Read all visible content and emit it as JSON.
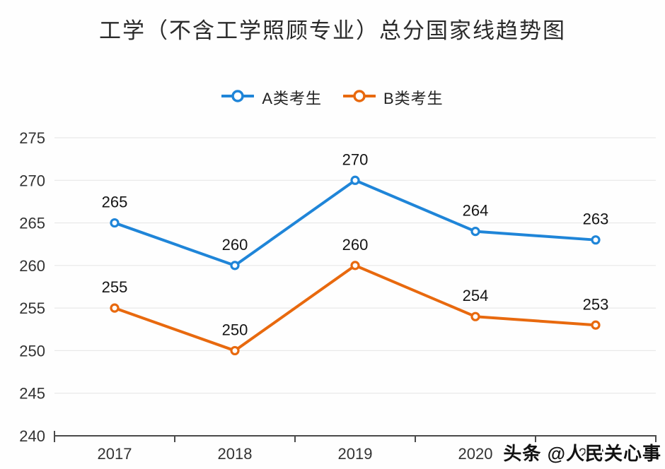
{
  "chart_data": {
    "type": "line",
    "title": "工学（不含工学照顾专业）总分国家线趋势图",
    "categories": [
      "2017",
      "2018",
      "2019",
      "2020",
      "2021"
    ],
    "series": [
      {
        "name": "A类考生",
        "color": "#1f85d8",
        "values": [
          265,
          260,
          270,
          264,
          263
        ]
      },
      {
        "name": "B类考生",
        "color": "#e8690e",
        "values": [
          255,
          250,
          260,
          254,
          253
        ]
      }
    ],
    "xlabel": "",
    "ylabel": "",
    "ylim": [
      240,
      275
    ],
    "ytick_step": 5,
    "yticks": [
      240,
      245,
      250,
      255,
      260,
      265,
      270,
      275
    ],
    "grid": true,
    "legend_position": "top",
    "data_labels": true
  },
  "watermark": {
    "text": "头条 @人民关心事"
  },
  "style": {
    "grid_color": "#e4e4e4",
    "axis_color": "#4a4a4a",
    "tick_label_color": "#333333",
    "data_label_color": "#151515",
    "marker_fill": "#ffffff",
    "background": "#fefefe"
  }
}
